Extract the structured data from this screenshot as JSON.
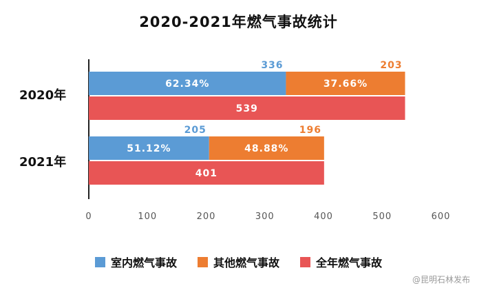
{
  "chart_data": {
    "type": "bar",
    "title": "2020-2021年燃气事故统计",
    "categories": [
      "2020年",
      "2021年"
    ],
    "xlim": [
      0,
      600
    ],
    "x_ticks": [
      0,
      100,
      200,
      300,
      400,
      500,
      600
    ],
    "grid": false,
    "legend_position": "bottom",
    "stacked_series": [
      {
        "name": "室内燃气事故",
        "values": [
          336,
          205
        ],
        "percent_labels": [
          "62.34%",
          "51.12%"
        ],
        "color": "#5b9bd5"
      },
      {
        "name": "其他燃气事故",
        "values": [
          203,
          196
        ],
        "percent_labels": [
          "37.66%",
          "48.88%"
        ],
        "color": "#ed7d31"
      }
    ],
    "total_series": {
      "name": "全年燃气事故",
      "values": [
        539,
        401
      ],
      "color": "#e85555"
    }
  },
  "watermark": "@昆明石林发布"
}
